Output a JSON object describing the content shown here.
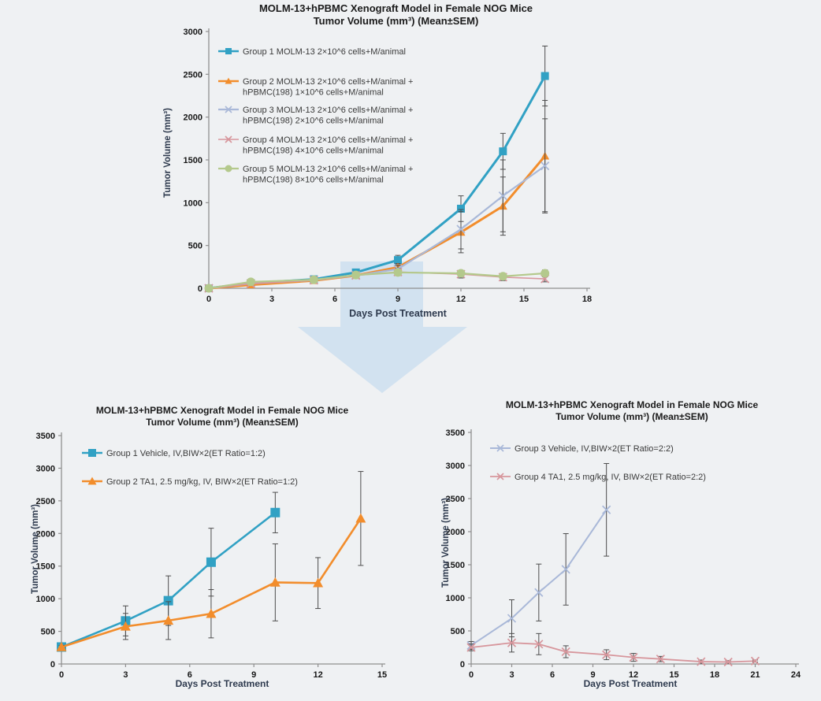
{
  "page": {
    "background": "#eff1f3"
  },
  "arrow": {
    "kind": "big-down-arrow",
    "fill": "#b9d6ec",
    "opacity": 0.55
  },
  "style": {
    "axis_color": "#8f8f8f",
    "tick_label_color": "#161616",
    "legend_text_color": "#3a3a3a",
    "error_bar_color": "#4d4d4d"
  },
  "chart_data": [
    {
      "type": "line",
      "title": "MOLM-13+hPBMC Xenograft Model in Female NOG Mice",
      "subtitle": "Tumor Volume (mm³) (Mean±SEM)",
      "xlabel": "Days Post Treatment",
      "ylabel": "Tumor Volume (mm³)",
      "xlim": [
        0,
        18
      ],
      "ylim": [
        0,
        3000
      ],
      "xticks": [
        0,
        3,
        6,
        9,
        12,
        15,
        18
      ],
      "yticks": [
        0,
        500,
        1000,
        1500,
        2000,
        2500,
        3000
      ],
      "grid": false,
      "legend_position": "upper-left-inside",
      "series": [
        {
          "name": "Group 1 MOLM-13 2×10^6 cells+M/animal",
          "label_lines": [
            "Group 1 MOLM-13 2×10^6 cells+M/animal"
          ],
          "color": "#31a1c4",
          "marker": "square",
          "line_width": 3,
          "x": [
            0,
            2,
            5,
            7,
            9,
            12,
            14,
            16
          ],
          "values": [
            0,
            60,
            105,
            185,
            330,
            930,
            1600,
            2480
          ],
          "sem": [
            0,
            15,
            20,
            30,
            55,
            150,
            210,
            350
          ]
        },
        {
          "name": "Group 2 MOLM-13 2×10^6 cells+M/animal + hPBMC(198) 1×10^6 cells+M/animal",
          "label_lines": [
            "Group 2 MOLM-13 2×10^6 cells+M/animal +",
            "hPBMC(198) 1×10^6 cells+M/animal"
          ],
          "color": "#f28d2c",
          "marker": "triangle",
          "line_width": 3,
          "x": [
            0,
            2,
            5,
            7,
            9,
            12,
            14,
            16
          ],
          "values": [
            0,
            40,
            90,
            150,
            245,
            655,
            960,
            1545
          ],
          "sem": [
            0,
            10,
            20,
            30,
            45,
            240,
            340,
            650
          ]
        },
        {
          "name": "Group 3 MOLM-13 2×10^6 cells+M/animal + hPBMC(198) 2×10^6 cells+M/animal",
          "label_lines": [
            "Group 3 MOLM-13 2×10^6 cells+M/animal +",
            "hPBMC(198) 2×10^6 cells+M/animal"
          ],
          "color": "#a9b8d8",
          "marker": "x",
          "line_width": 2.2,
          "x": [
            0,
            2,
            5,
            7,
            9,
            12,
            14,
            16
          ],
          "values": [
            0,
            55,
            95,
            150,
            225,
            690,
            1080,
            1430
          ],
          "sem": [
            0,
            10,
            20,
            30,
            45,
            230,
            420,
            550
          ]
        },
        {
          "name": "Group 4 MOLM-13 2×10^6 cells+M/animal + hPBMC(198) 4×10^6 cells+M/animal",
          "label_lines": [
            "Group 4 MOLM-13 2×10^6 cells+M/animal +",
            "hPBMC(198) 4×10^6 cells+M/animal"
          ],
          "color": "#d7969c",
          "marker": "x",
          "line_width": 1.6,
          "x": [
            0,
            2,
            5,
            7,
            9,
            12,
            14,
            16
          ],
          "values": [
            0,
            55,
            95,
            150,
            190,
            165,
            130,
            110
          ],
          "sem": [
            0,
            10,
            15,
            25,
            40,
            45,
            40,
            35
          ]
        },
        {
          "name": "Group 5 MOLM-13 2×10^6 cells+M/animal + hPBMC(198) 8×10^6 cells+M/animal",
          "label_lines": [
            "Group 5 MOLM-13 2×10^6 cells+M/animal +",
            "hPBMC(198) 8×10^6 cells+M/animal"
          ],
          "color": "#b4c98c",
          "marker": "circle",
          "line_width": 2.2,
          "x": [
            0,
            2,
            5,
            7,
            9,
            12,
            14,
            16
          ],
          "values": [
            0,
            75,
            100,
            155,
            185,
            175,
            140,
            175
          ],
          "sem": [
            0,
            10,
            15,
            25,
            35,
            35,
            30,
            40
          ]
        }
      ]
    },
    {
      "type": "line",
      "title": "MOLM-13+hPBMC Xenograft Model in Female NOG Mice",
      "subtitle": "Tumor Volume (mm³) (Mean±SEM)",
      "xlabel": "Days Post Treatment",
      "ylabel": "Tumor Volume (mm³)",
      "xlim": [
        0,
        15
      ],
      "ylim": [
        0,
        3500
      ],
      "xticks": [
        0,
        3,
        6,
        9,
        12,
        15
      ],
      "yticks": [
        0,
        500,
        1000,
        1500,
        2000,
        2500,
        3000,
        3500
      ],
      "grid": false,
      "legend_position": "upper-left-inside",
      "series": [
        {
          "name": "Group 1 Vehicle, IV,BIW×2(ET Ratio=1:2)",
          "label_lines": [
            "Group 1 Vehicle, IV,BIW×2(ET Ratio=1:2)"
          ],
          "color": "#31a1c4",
          "marker": "square",
          "line_width": 2.6,
          "x": [
            0,
            3,
            5,
            7,
            10
          ],
          "values": [
            260,
            660,
            970,
            1560,
            2320
          ],
          "sem": [
            25,
            230,
            380,
            520,
            310
          ]
        },
        {
          "name": "Group 2 TA1, 2.5 mg/kg, IV, BIW×2(ET Ratio=1:2)",
          "label_lines": [
            "Group 2 TA1, 2.5 mg/kg, IV, BIW×2(ET Ratio=1:2)"
          ],
          "color": "#f28d2c",
          "marker": "triangle",
          "line_width": 2.6,
          "x": [
            0,
            3,
            5,
            7,
            10,
            12,
            14
          ],
          "values": [
            260,
            575,
            665,
            770,
            1250,
            1240,
            2230
          ],
          "sem": [
            25,
            200,
            290,
            370,
            590,
            390,
            720
          ]
        }
      ]
    },
    {
      "type": "line",
      "title": "MOLM-13+hPBMC Xenograft Model in Female NOG Mice",
      "subtitle": "Tumor Volume (mm³) (Mean±SEM)",
      "xlabel": "Days Post Treatment",
      "ylabel": "Tumor Volume (mm³)",
      "xlim": [
        0,
        24
      ],
      "ylim": [
        0,
        3500
      ],
      "xticks": [
        0,
        3,
        6,
        9,
        12,
        15,
        18,
        21,
        24
      ],
      "yticks": [
        0,
        500,
        1000,
        1500,
        2000,
        2500,
        3000,
        3500
      ],
      "grid": false,
      "legend_position": "upper-left-inside",
      "series": [
        {
          "name": "Group 3 Vehicle, IV,BIW×2(ET Ratio=2:2)",
          "label_lines": [
            "Group 3 Vehicle, IV,BIW×2(ET Ratio=2:2)"
          ],
          "color": "#a9b8d8",
          "marker": "x",
          "line_width": 2,
          "x": [
            0,
            3,
            5,
            7,
            10
          ],
          "values": [
            280,
            690,
            1080,
            1430,
            2330
          ],
          "sem": [
            60,
            280,
            430,
            540,
            700
          ]
        },
        {
          "name": "Group 4 TA1, 2.5 mg/kg, IV, BIW×2(ET Ratio=2:2)",
          "label_lines": [
            "Group 4 TA1, 2.5 mg/kg, IV, BIW×2(ET Ratio=2:2)"
          ],
          "color": "#d7969c",
          "marker": "x",
          "line_width": 1.8,
          "x": [
            0,
            3,
            5,
            7,
            10,
            12,
            14,
            17,
            19,
            21
          ],
          "values": [
            250,
            320,
            300,
            185,
            140,
            100,
            75,
            35,
            30,
            45
          ],
          "sem": [
            50,
            140,
            160,
            90,
            75,
            60,
            40,
            25,
            20,
            15
          ]
        }
      ]
    }
  ]
}
